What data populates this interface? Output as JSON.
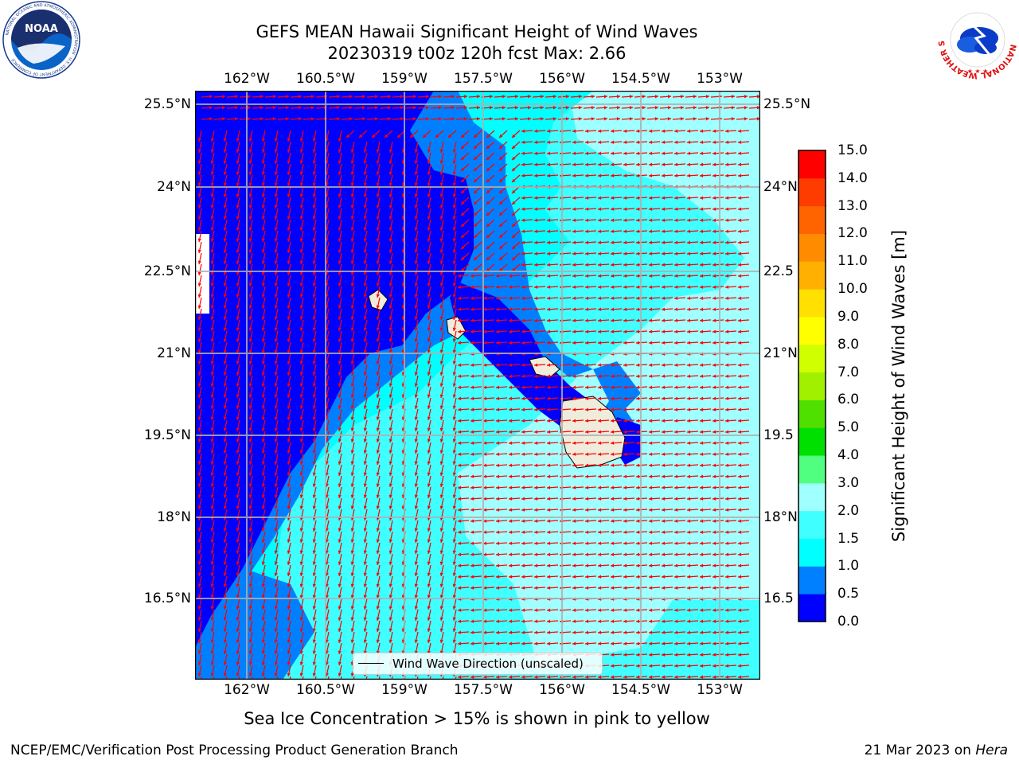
{
  "title": {
    "line1": "GEFS MEAN Hawaii Significant Height of Wind Waves",
    "line2": "20230319 t00z 120h fcst   Max: 2.66"
  },
  "map": {
    "lon_labels": [
      "162°W",
      "160.5°W",
      "159°W",
      "157.5°W",
      "156°W",
      "154.5°W",
      "153°W"
    ],
    "lat_labels": [
      "25.5°N",
      "24°N",
      "22.5°N",
      "21°N",
      "19.5°N",
      "18°N",
      "16.5°N"
    ],
    "lat_labels_right": [
      "25.5°N",
      "24°N",
      "22.5",
      "21°N",
      "19.5",
      "18°N",
      "16.5"
    ],
    "legend_label": "Wind Wave Direction (unscaled)",
    "arrow_color": "#ff0000"
  },
  "colorbar": {
    "title": "Significant Height of Wind Waves [m]",
    "ticks": [
      "0.0",
      "0.5",
      "1.0",
      "1.5",
      "2.0",
      "3.0",
      "4.0",
      "5.0",
      "6.0",
      "7.0",
      "8.0",
      "9.0",
      "10.0",
      "11.0",
      "12.0",
      "13.0",
      "14.0",
      "15.0"
    ],
    "colors": [
      "#0000ff",
      "#0080ff",
      "#00ffff",
      "#40ffff",
      "#a0ffff",
      "#50ff80",
      "#00e000",
      "#50e000",
      "#a0f000",
      "#d0ff00",
      "#ffff00",
      "#ffe000",
      "#ffb000",
      "#ff8c00",
      "#ff6400",
      "#ff3c00",
      "#ff0000"
    ]
  },
  "caption": "Sea Ice Concentration > 15% is shown in pink to yellow",
  "footer": {
    "left": "NCEP/EMC/Verification Post Processing Product Generation Branch",
    "date": "21 Mar 2023 on ",
    "machine": "Hera"
  },
  "logos": {
    "noaa": "NOAA",
    "noaa_ring": "NATIONAL OCEANIC AND ATMOSPHERIC ADMINISTRATION · U.S. DEPARTMENT OF COMMERCE",
    "nws_ring": "NATIONAL WEATHER SERVICE"
  }
}
